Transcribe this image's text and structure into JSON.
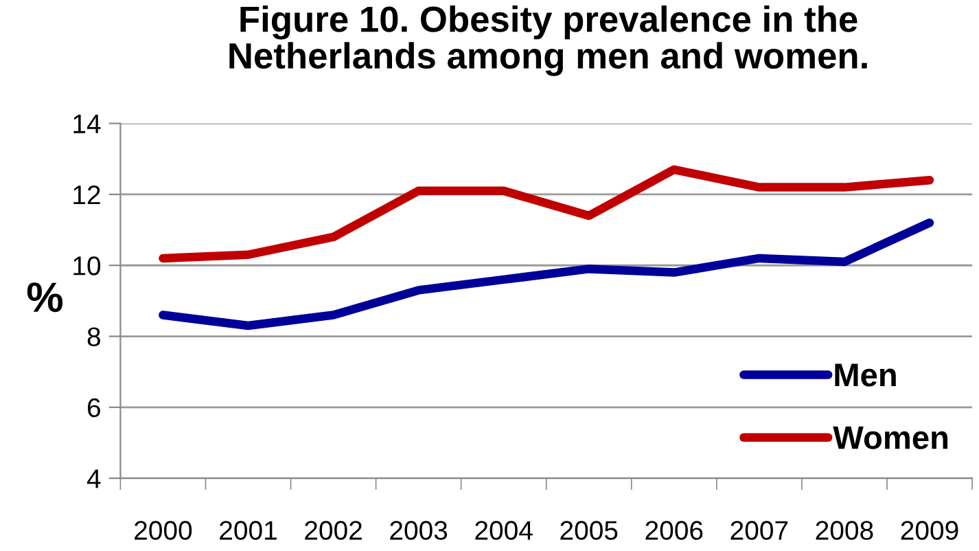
{
  "chart_data": {
    "type": "line",
    "title": "Figure 10. Obesity prevalence in the\nNetherlands among men and women.",
    "ylabel": "%",
    "categories": [
      "2000",
      "2001",
      "2002",
      "2003",
      "2004",
      "2005",
      "2006",
      "2007",
      "2008",
      "2009"
    ],
    "series": [
      {
        "name": "Men",
        "color": "#000099",
        "values": [
          8.6,
          8.3,
          8.6,
          9.3,
          9.6,
          9.9,
          9.8,
          10.2,
          10.1,
          11.2
        ]
      },
      {
        "name": "Women",
        "color": "#c00000",
        "values": [
          10.2,
          10.3,
          10.8,
          12.1,
          12.1,
          11.4,
          12.7,
          12.2,
          12.2,
          12.4
        ]
      }
    ],
    "ylim": [
      4,
      14
    ],
    "yticks": [
      4,
      6,
      8,
      10,
      12,
      14
    ],
    "grid": "y",
    "legend": "lower right",
    "marker": "none",
    "line_style": "solid"
  }
}
